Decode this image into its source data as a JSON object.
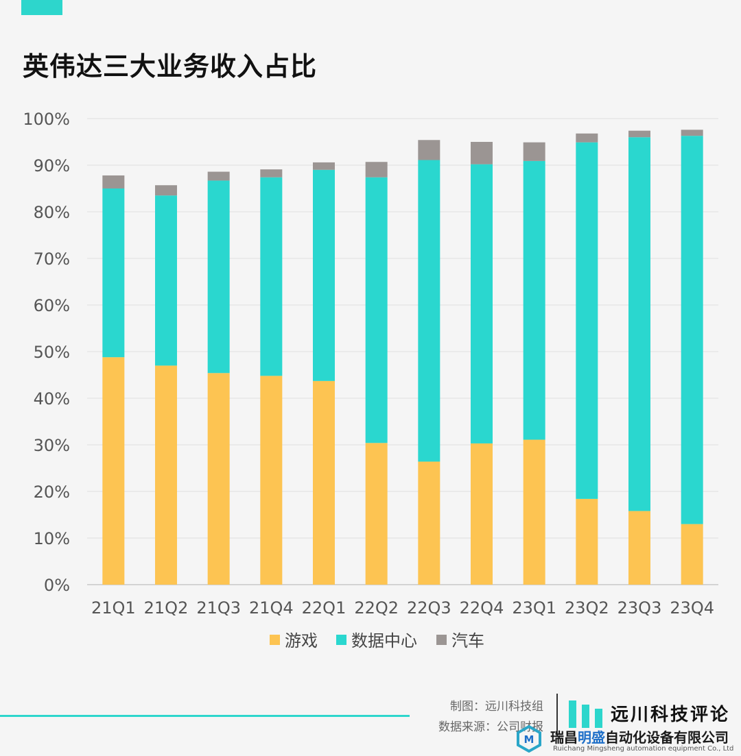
{
  "title": "英伟达三大业务收入占比",
  "chart_data": {
    "type": "bar",
    "stacked": true,
    "categories": [
      "21Q1",
      "21Q2",
      "21Q3",
      "21Q4",
      "22Q1",
      "22Q2",
      "22Q3",
      "22Q4",
      "23Q1",
      "23Q2",
      "23Q3",
      "23Q4"
    ],
    "series": [
      {
        "name": "游戏",
        "color": "#fdc452",
        "values": [
          48.8,
          47.0,
          45.4,
          44.8,
          43.7,
          30.4,
          26.4,
          30.3,
          31.1,
          18.4,
          15.8,
          13.0
        ]
      },
      {
        "name": "数据中心",
        "color": "#2ad7cf",
        "values": [
          36.2,
          36.5,
          41.3,
          42.6,
          45.3,
          57.0,
          64.7,
          59.9,
          59.8,
          76.5,
          80.2,
          83.3
        ]
      },
      {
        "name": "汽车",
        "color": "#9b9593",
        "values": [
          2.8,
          2.2,
          1.9,
          1.7,
          1.6,
          3.3,
          4.3,
          4.8,
          4.0,
          1.9,
          1.4,
          1.3
        ]
      }
    ],
    "ylim": [
      0,
      100
    ],
    "yticks": [
      0,
      10,
      20,
      30,
      40,
      50,
      60,
      70,
      80,
      90,
      100
    ],
    "ytick_suffix": "%",
    "grid": true,
    "legend": "bottom"
  },
  "footer": {
    "credit_line1": "制图：远川科技组",
    "credit_line2": "数据来源：公司财报",
    "brand": "远川科技评论",
    "watermark": {
      "name_a": "瑞昌",
      "name_b": "明盛",
      "name_c": "自动化设备有限公司",
      "sub": "Ruichang Mingsheng automation equipment Co., Ltd"
    }
  },
  "colors": {
    "accent": "#2dd6cc",
    "background": "#f5f5f5"
  }
}
